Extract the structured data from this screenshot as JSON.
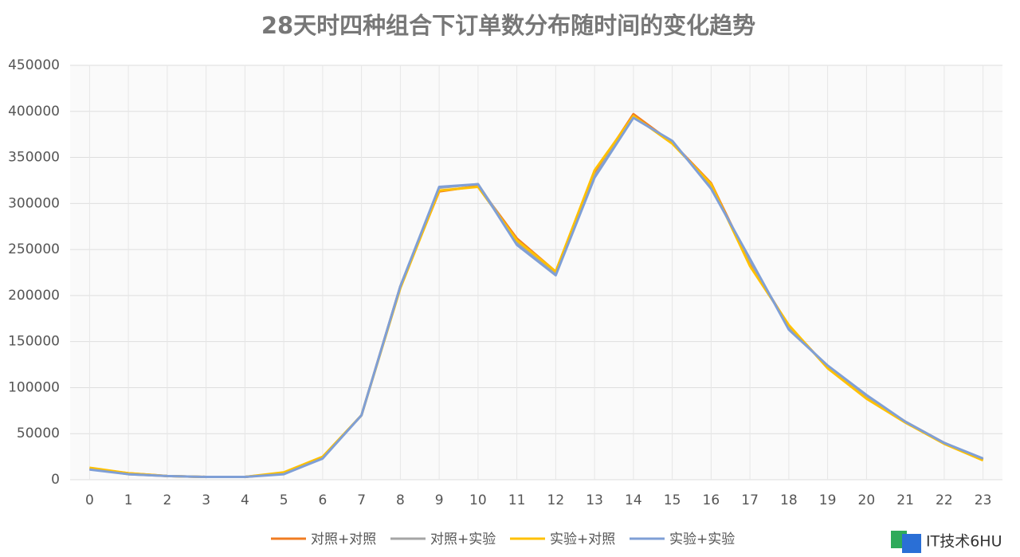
{
  "chart_data": {
    "type": "line",
    "title": "28天时四种组合下订单数分布随时间的变化趋势",
    "categories": [
      "0",
      "1",
      "2",
      "3",
      "4",
      "5",
      "6",
      "7",
      "8",
      "9",
      "10",
      "11",
      "12",
      "13",
      "14",
      "15",
      "16",
      "17",
      "18",
      "19",
      "20",
      "21",
      "22",
      "23"
    ],
    "series": [
      {
        "name": "对照+对照",
        "color": "#f07c22",
        "values": [
          12000,
          7000,
          4000,
          3000,
          3000,
          7000,
          24000,
          70000,
          210000,
          313000,
          319000,
          262000,
          226000,
          333000,
          397000,
          366000,
          322000,
          235000,
          167000,
          122000,
          90000,
          63000,
          40000,
          22000
        ]
      },
      {
        "name": "对照+实验",
        "color": "#a5a5a5",
        "values": [
          12000,
          6000,
          4000,
          3000,
          3000,
          7000,
          24000,
          70000,
          210000,
          317000,
          321000,
          258000,
          224000,
          330000,
          394000,
          367000,
          318000,
          238000,
          165000,
          123000,
          91000,
          63000,
          40000,
          22000
        ]
      },
      {
        "name": "实验+对照",
        "color": "#ffc000",
        "values": [
          13000,
          7000,
          4000,
          3000,
          3000,
          8000,
          25000,
          70000,
          208000,
          314000,
          318000,
          260000,
          226000,
          336000,
          395000,
          365000,
          321000,
          232000,
          168000,
          121000,
          88000,
          62000,
          39000,
          21000
        ]
      },
      {
        "name": "实验+实验",
        "color": "#7f9fd6",
        "values": [
          11000,
          6000,
          4000,
          3000,
          3000,
          6000,
          23000,
          70000,
          210000,
          318000,
          321000,
          255000,
          222000,
          328000,
          393000,
          368000,
          316000,
          240000,
          163000,
          124000,
          92000,
          63000,
          40000,
          23000
        ]
      }
    ],
    "ylim": [
      0,
      450000
    ],
    "yticks": [
      0,
      50000,
      100000,
      150000,
      200000,
      250000,
      300000,
      350000,
      400000,
      450000
    ],
    "grid": true,
    "legend": "bottom"
  },
  "watermark": "IT技术6HU"
}
